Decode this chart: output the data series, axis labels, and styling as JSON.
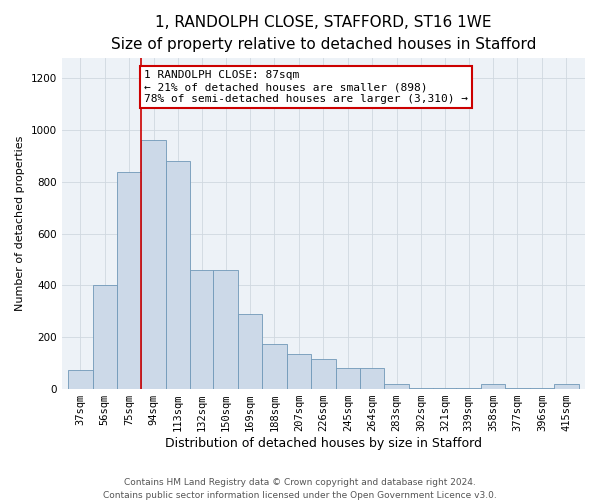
{
  "title1": "1, RANDOLPH CLOSE, STAFFORD, ST16 1WE",
  "title2": "Size of property relative to detached houses in Stafford",
  "xlabel": "Distribution of detached houses by size in Stafford",
  "ylabel": "Number of detached properties",
  "categories": [
    "37sqm",
    "56sqm",
    "75sqm",
    "94sqm",
    "113sqm",
    "132sqm",
    "150sqm",
    "169sqm",
    "188sqm",
    "207sqm",
    "226sqm",
    "245sqm",
    "264sqm",
    "283sqm",
    "302sqm",
    "321sqm",
    "339sqm",
    "358sqm",
    "377sqm",
    "396sqm",
    "415sqm"
  ],
  "values": [
    75,
    400,
    840,
    960,
    880,
    460,
    460,
    290,
    175,
    135,
    115,
    80,
    80,
    20,
    5,
    5,
    5,
    20,
    5,
    5,
    20
  ],
  "bar_color": "#ccd9e8",
  "bar_edge_color": "#7098b8",
  "property_label": "1 RANDOLPH CLOSE: 87sqm",
  "annotation_line1": "← 21% of detached houses are smaller (898)",
  "annotation_line2": "78% of semi-detached houses are larger (3,310) →",
  "annotation_box_color": "#ffffff",
  "annotation_box_edge": "#cc0000",
  "vline_color": "#cc0000",
  "ylim": [
    0,
    1280
  ],
  "yticks": [
    0,
    200,
    400,
    600,
    800,
    1000,
    1200
  ],
  "grid_color": "#d0d8e0",
  "bg_color": "#edf2f7",
  "footer1": "Contains HM Land Registry data © Crown copyright and database right 2024.",
  "footer2": "Contains public sector information licensed under the Open Government Licence v3.0.",
  "title1_fontsize": 11,
  "title2_fontsize": 9.5,
  "xlabel_fontsize": 9,
  "ylabel_fontsize": 8,
  "tick_fontsize": 7.5,
  "annotation_fontsize": 8,
  "footer_fontsize": 6.5,
  "bin_edges": [
    37,
    56,
    75,
    94,
    113,
    132,
    150,
    169,
    188,
    207,
    226,
    245,
    264,
    283,
    302,
    321,
    339,
    358,
    377,
    396,
    415,
    434
  ]
}
